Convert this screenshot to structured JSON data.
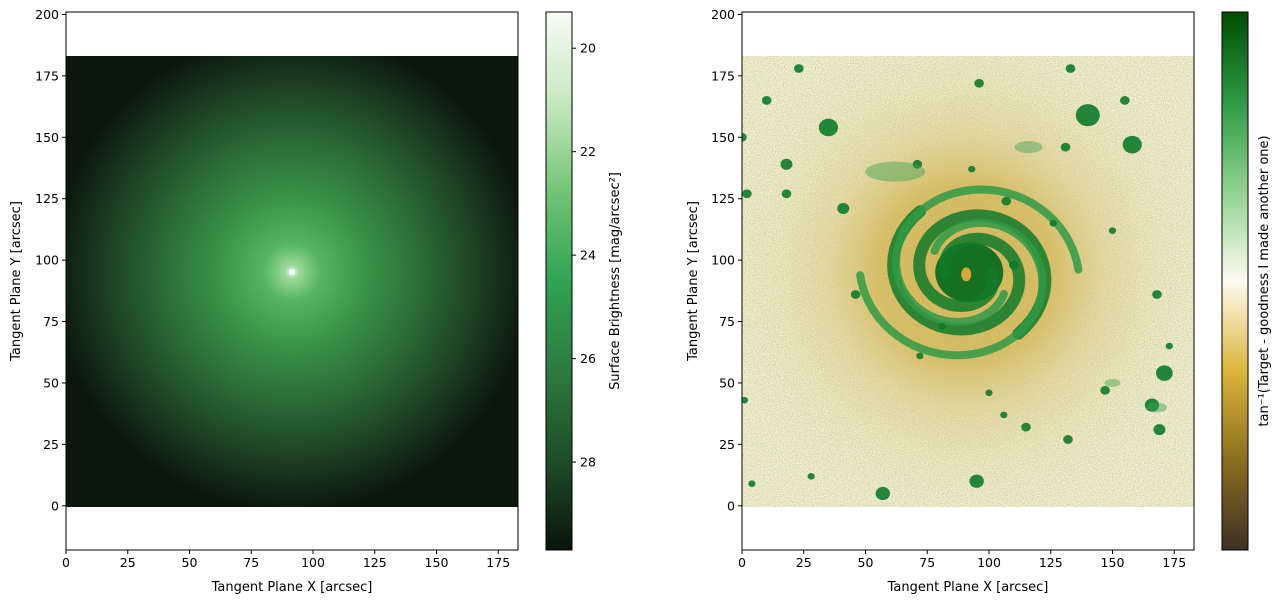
{
  "chart_data": [
    {
      "type": "heatmap",
      "panel": "left",
      "xlabel": "Tangent Plane X [arcsec]",
      "ylabel": "Tangent Plane Y [arcsec]",
      "xlim": [
        0,
        183
      ],
      "ylim": [
        -18,
        201
      ],
      "image_extent": {
        "x": [
          0,
          183
        ],
        "y": [
          0,
          183
        ]
      },
      "x_ticks": [
        "0",
        "25",
        "50",
        "75",
        "100",
        "125",
        "150",
        "175"
      ],
      "y_ticks": [
        "0",
        "25",
        "50",
        "75",
        "100",
        "125",
        "150",
        "175",
        "200"
      ],
      "peak_position": [
        92,
        95
      ],
      "colorbar": {
        "label": "Surface Brightness [mag/arcsec²]",
        "range": [
          19.3,
          29.7
        ],
        "inverted": true,
        "ticks": [
          "20",
          "22",
          "24",
          "26",
          "28"
        ],
        "colors": [
          "#f7fcf5",
          "#c7e9c0",
          "#74c476",
          "#31a354",
          "#2d7a3e",
          "#1e4d27",
          "#08140a"
        ]
      }
    },
    {
      "type": "heatmap",
      "panel": "right",
      "xlabel": "Tangent Plane X [arcsec]",
      "ylabel": "Tangent Plane Y [arcsec]",
      "xlim": [
        0,
        183
      ],
      "ylim": [
        -18,
        201
      ],
      "image_extent": {
        "x": [
          0,
          183
        ],
        "y": [
          0,
          183
        ]
      },
      "x_ticks": [
        "0",
        "25",
        "50",
        "75",
        "100",
        "125",
        "150",
        "175"
      ],
      "y_ticks": [
        "0",
        "25",
        "50",
        "75",
        "100",
        "125",
        "150",
        "175",
        "200"
      ],
      "center": [
        92,
        95
      ],
      "colorbar": {
        "label": "tan⁻¹(Target - goodness I made another one)",
        "ticks": [],
        "colors": [
          "#3d3126",
          "#8c6e1e",
          "#dcb53a",
          "#fffaf0",
          "#8fd38f",
          "#2e9a43",
          "#004d00"
        ]
      }
    }
  ]
}
